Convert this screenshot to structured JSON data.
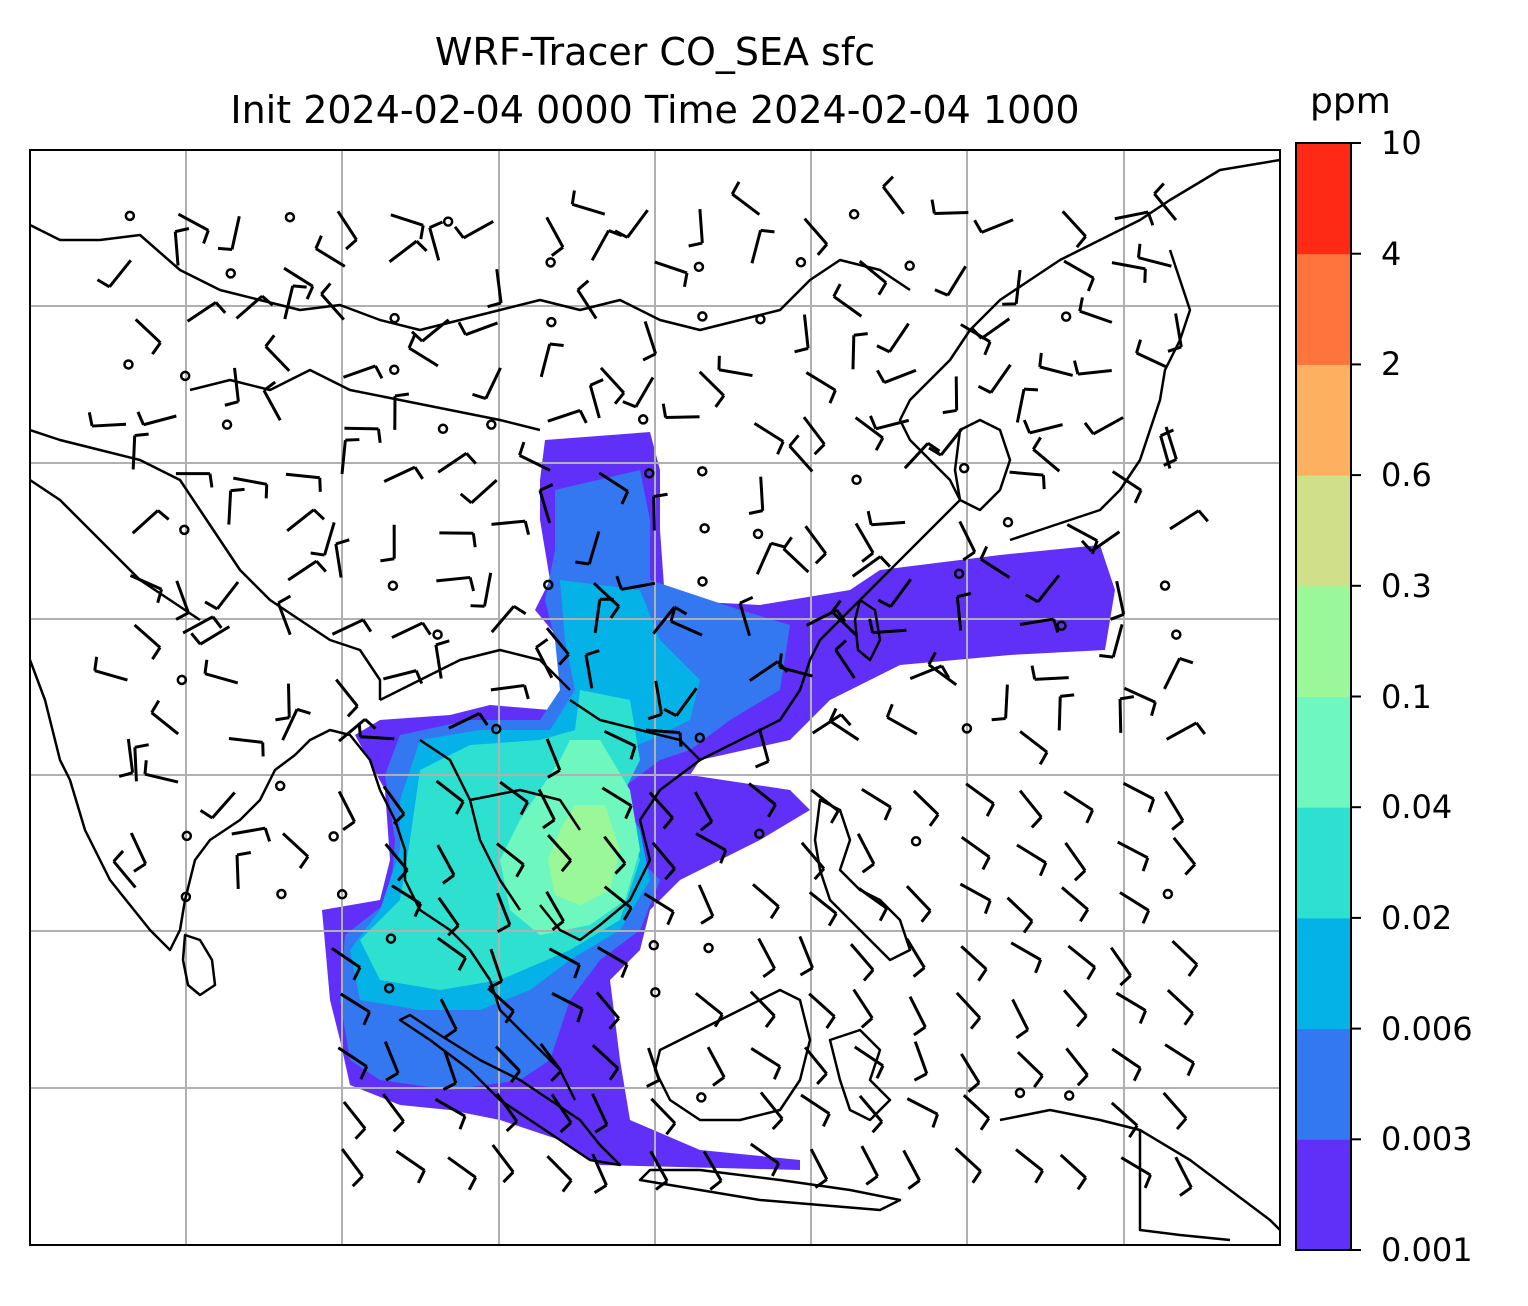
{
  "title_line1": "WRF-Tracer CO_SEA sfc",
  "title_line2": "Init 2024-02-04 0000 Time 2024-02-04 1000",
  "colorbar": {
    "unit": "ppm",
    "levels": [
      "0.001",
      "0.003",
      "0.006",
      "0.02",
      "0.04",
      "0.1",
      "0.3",
      "0.6",
      "2",
      "4",
      "10"
    ],
    "colors": [
      "#6030f8",
      "#3378f0",
      "#04b2e8",
      "#2ee0d0",
      "#6ef8c0",
      "#9af898",
      "#d0e088",
      "#fdb060",
      "#ff743c",
      "#ff2a16"
    ]
  },
  "map": {
    "gridlines": true,
    "coastline_color": "#000000",
    "grid_color": "#b0b0b0"
  }
}
